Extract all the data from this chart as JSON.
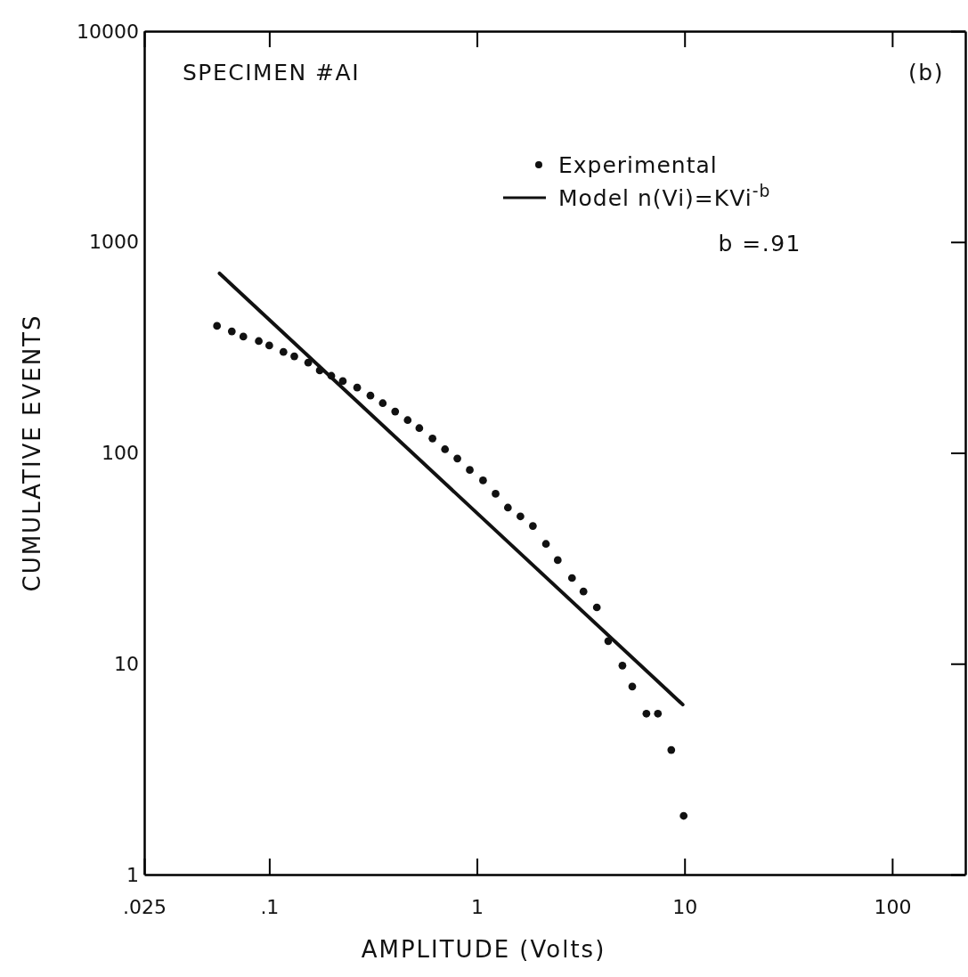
{
  "chart_data": {
    "type": "scatter",
    "xlabel": "AMPLITUDE (Volts)",
    "ylabel": "CUMULATIVE EVENTS",
    "log": "xy",
    "xlim": [
      0.025,
      225
    ],
    "ylim": [
      1,
      10000
    ],
    "xticks": [
      {
        "value": 0.025,
        "label": ".025"
      },
      {
        "value": 0.1,
        "label": ".1"
      },
      1,
      10,
      100
    ],
    "yticks": [
      1,
      10,
      100,
      1000,
      10000
    ],
    "grid": false,
    "legend": "top right",
    "annotations": [
      "SPECIMEN #AI",
      "(b)",
      "b =.91"
    ],
    "series": [
      {
        "name": "Experimental",
        "marker": "circle",
        "color": "#111111",
        "x": [
          0.056,
          0.066,
          0.075,
          0.089,
          0.1,
          0.117,
          0.132,
          0.154,
          0.175,
          0.199,
          0.226,
          0.265,
          0.307,
          0.352,
          0.404,
          0.464,
          0.528,
          0.611,
          0.702,
          0.805,
          0.924,
          1.07,
          1.23,
          1.41,
          1.62,
          1.86,
          2.15,
          2.45,
          2.87,
          3.26,
          3.78,
          4.29,
          5.02,
          5.6,
          6.55,
          7.44,
          8.63,
          9.9
        ],
        "values": [
          400,
          377,
          356,
          339,
          323,
          301,
          287,
          268,
          246,
          232,
          219,
          204,
          187,
          172,
          157,
          143,
          131,
          117,
          104,
          94,
          83,
          74,
          64,
          55,
          50,
          45,
          37,
          31,
          25.5,
          22,
          18.5,
          12.8,
          9.8,
          7.8,
          5.8,
          5.8,
          3.9,
          1.9
        ]
      },
      {
        "name": "Model n(Vi)=KVi$^{-b}$",
        "type": "line",
        "color": "#111111",
        "line_style": "solid",
        "x": [
          0.0576,
          9.8
        ],
        "values": [
          710,
          6.4
        ]
      }
    ]
  }
}
